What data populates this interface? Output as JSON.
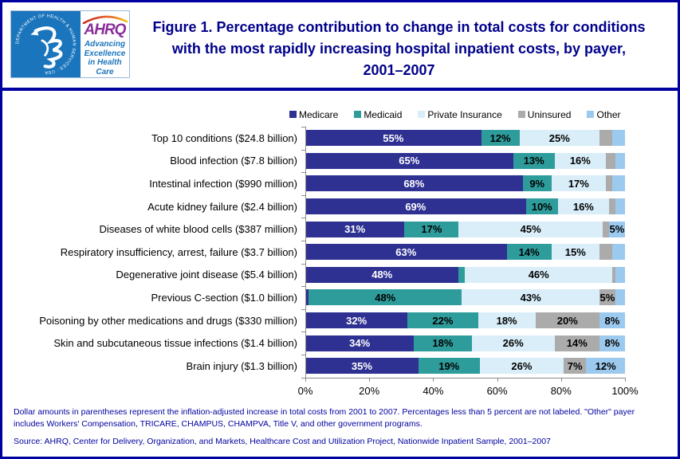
{
  "header": {
    "title": "Figure 1. Percentage contribution to change in total costs for conditions with the most rapidly increasing hospital inpatient costs, by payer, 2001–2007",
    "logo": {
      "acronym": "AHRQ",
      "tagline": "Advancing Excellence in Health Care",
      "hhs_seal_text": "DEPARTMENT OF HEALTH & HUMAN SERVICES · USA"
    }
  },
  "chart_data": {
    "type": "bar",
    "orientation": "horizontal",
    "stacked": true,
    "legend_position": "top",
    "label_min_percent": 5,
    "x_axis": {
      "range": [
        0,
        100
      ],
      "tick_labels": [
        "0%",
        "20%",
        "40%",
        "60%",
        "80%",
        "100%"
      ]
    },
    "categories": [
      "Top 10 conditions ($24.8 billion)",
      "Blood infection ($7.8 billion)",
      "Intestinal infection ($990 million)",
      "Acute kidney failure ($2.4 billion)",
      "Diseases of white blood cells ($387 million)",
      "Respiratory insufficiency, arrest, failure  ($3.7 billion)",
      "Degenerative joint disease ($5.4 billion)",
      "Previous C-section ($1.0 billion)",
      "Poisoning by other medications and drugs ($330 million)",
      "Skin and subcutaneous tissue infections ($1.4 billion)",
      "Brain injury ($1.3 billion)"
    ],
    "series": [
      {
        "name": "Medicare",
        "color": "#2E3192",
        "label_color": "#FFFFFF",
        "values": [
          55,
          65,
          68,
          69,
          31,
          63,
          48,
          1,
          32,
          34,
          35
        ]
      },
      {
        "name": "Medicaid",
        "color": "#2F9C9C",
        "label_color": "#000000",
        "values": [
          12,
          13,
          9,
          10,
          17,
          14,
          2,
          48,
          22,
          18,
          19
        ]
      },
      {
        "name": "Private Insurance",
        "color": "#D9EEF9",
        "label_color": "#000000",
        "values": [
          25,
          16,
          17,
          16,
          45,
          15,
          46,
          43,
          18,
          26,
          26
        ]
      },
      {
        "name": "Uninsured",
        "color": "#ABABAB",
        "label_color": "#000000",
        "values": [
          4,
          3,
          2,
          2,
          2,
          4,
          1,
          5,
          20,
          14,
          7
        ]
      },
      {
        "name": "Other",
        "color": "#9CC9EE",
        "label_color": "#000000",
        "values": [
          4,
          3,
          4,
          3,
          5,
          4,
          3,
          3,
          8,
          8,
          12
        ]
      }
    ]
  },
  "footnotes": {
    "note": "Dollar amounts in parentheses  represent the inflation-adjusted increase in total costs from 2001 to 2007.  Percentages less than 5 percent are not labeled.  \"Other\" payer includes Workers' Compensation, TRICARE, CHAMPUS, CHAMPVA, Title V, and other government programs.",
    "source": "Source: AHRQ, Center for Delivery, Organization, and Markets, Healthcare Cost and Utilization Project, Nationwide Inpatient Sample, 2001–2007"
  }
}
